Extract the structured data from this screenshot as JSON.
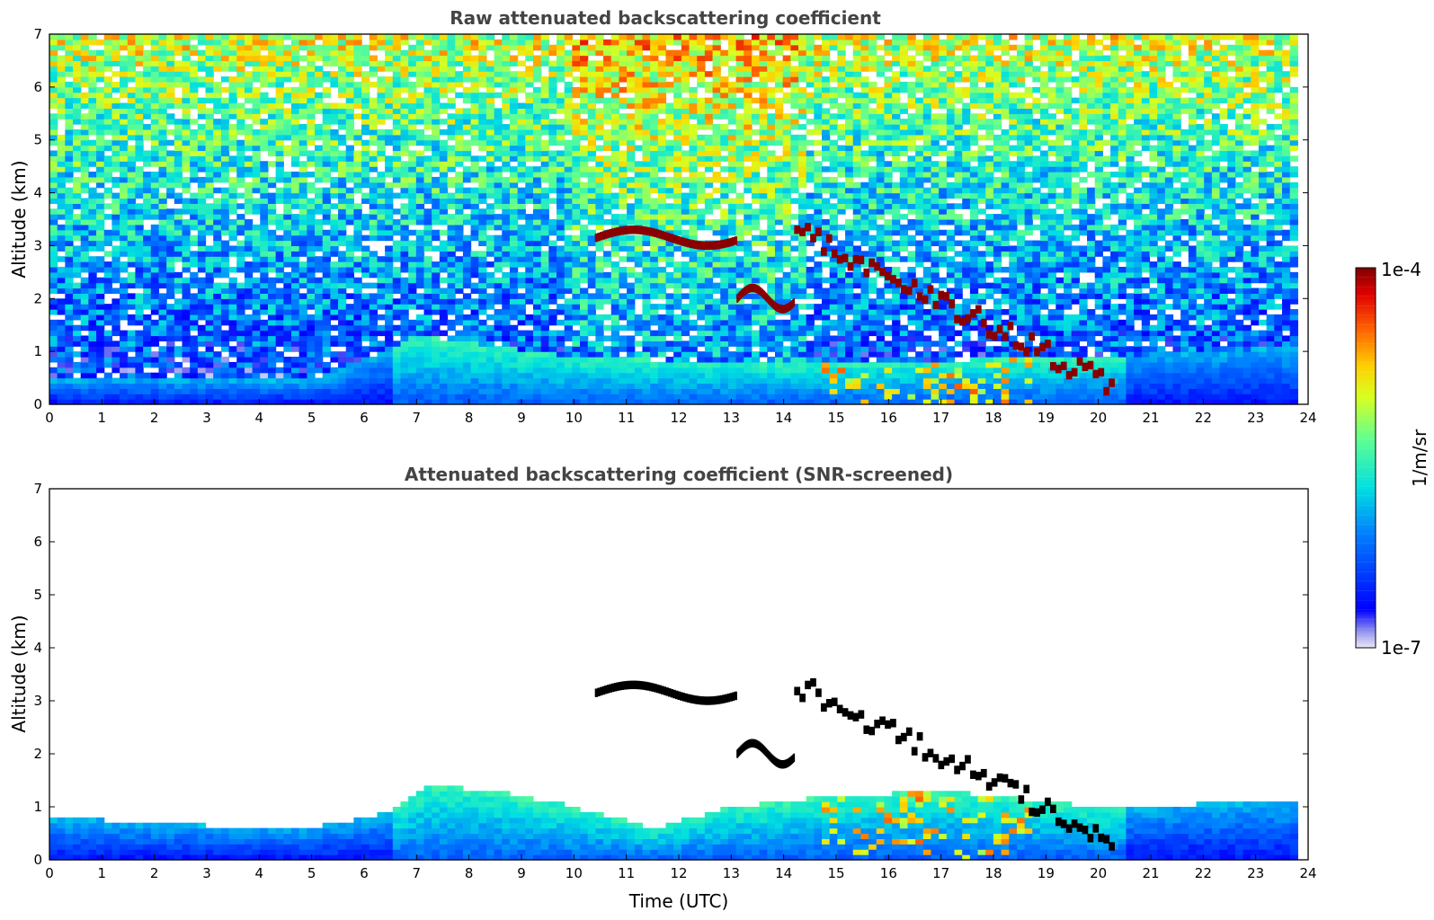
{
  "chart_data": [
    {
      "type": "heatmap",
      "title": "Raw attenuated backscattering coefficient",
      "xlabel": "",
      "ylabel": "Altitude (km)",
      "xlim": [
        0,
        24
      ],
      "ylim": [
        0,
        7
      ],
      "xticks": [
        "0",
        "1",
        "2",
        "3",
        "4",
        "5",
        "6",
        "7",
        "8",
        "9",
        "10",
        "11",
        "12",
        "13",
        "14",
        "15",
        "16",
        "17",
        "18",
        "19",
        "20",
        "21",
        "22",
        "23",
        "24"
      ],
      "yticks": [
        "0",
        "1",
        "2",
        "3",
        "4",
        "5",
        "6",
        "7"
      ],
      "data_extent_hours": [
        0,
        23.8
      ],
      "cloud_layers": [
        {
          "t": [
            10.4,
            13.1
          ],
          "alt_km": [
            3.0,
            3.3
          ]
        },
        {
          "t": [
            13.1,
            14.2
          ],
          "alt_km": [
            1.8,
            2.2
          ]
        },
        {
          "t": [
            14.2,
            20.3
          ],
          "alt_km": [
            0.3,
            3.3
          ]
        }
      ],
      "boundary_layer_top_km": [
        [
          0,
          0.5
        ],
        [
          5,
          0.45
        ],
        [
          7,
          1.3
        ],
        [
          10,
          0.9
        ],
        [
          13,
          0.8
        ],
        [
          15,
          0.8
        ],
        [
          20,
          0.9
        ],
        [
          23.8,
          1.1
        ]
      ]
    },
    {
      "type": "heatmap",
      "title": "Attenuated backscattering coefficient (SNR-screened)",
      "xlabel": "Time (UTC)",
      "ylabel": "Altitude (km)",
      "xlim": [
        0,
        24
      ],
      "ylim": [
        0,
        7
      ],
      "xticks": [
        "0",
        "1",
        "2",
        "3",
        "4",
        "5",
        "6",
        "7",
        "8",
        "9",
        "10",
        "11",
        "12",
        "13",
        "14",
        "15",
        "16",
        "17",
        "18",
        "19",
        "20",
        "21",
        "22",
        "23",
        "24"
      ],
      "yticks": [
        "0",
        "1",
        "2",
        "3",
        "4",
        "5",
        "6",
        "7"
      ],
      "data_extent_hours": [
        0,
        23.8
      ],
      "boundary_layer_top_km": [
        [
          0,
          0.8
        ],
        [
          3,
          0.65
        ],
        [
          5,
          0.6
        ],
        [
          6.5,
          0.9
        ],
        [
          7.2,
          1.4
        ],
        [
          8.5,
          1.3
        ],
        [
          10,
          1.0
        ],
        [
          11.5,
          0.6
        ],
        [
          13,
          1.0
        ],
        [
          15,
          1.2
        ],
        [
          17,
          1.3
        ],
        [
          20,
          1.0
        ],
        [
          23.8,
          1.1
        ]
      ]
    }
  ],
  "colorbar": {
    "max_label": "1e-4",
    "min_label": "1e-7",
    "unit_label": "1/m/sr",
    "scale": "log",
    "range": [
      1e-07,
      0.0001
    ]
  }
}
